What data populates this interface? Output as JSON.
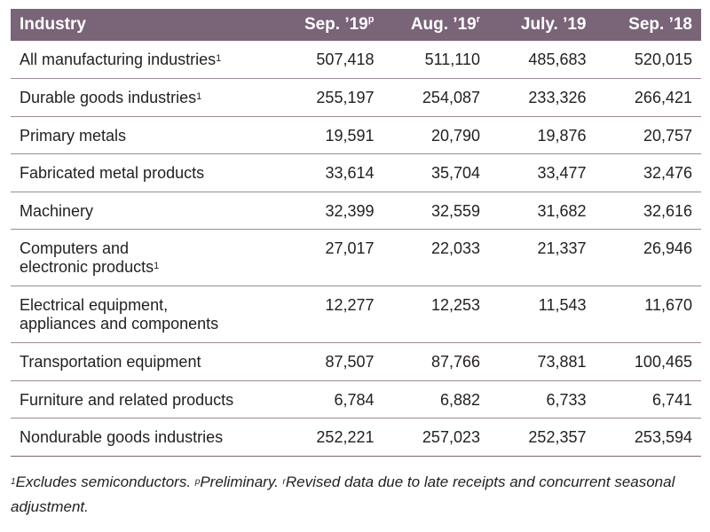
{
  "chart_data": {
    "type": "table",
    "columns": [
      {
        "label": "Industry",
        "mark": ""
      },
      {
        "label": "Sep. ’19",
        "mark": "p"
      },
      {
        "label": "Aug. ’19",
        "mark": "r"
      },
      {
        "label": "July. ’19",
        "mark": ""
      },
      {
        "label": "Sep. ’18",
        "mark": ""
      }
    ],
    "rows": [
      {
        "lines": [
          "All manufacturing industries"
        ],
        "mark": "1",
        "values": [
          "507,418",
          "511,110",
          "485,683",
          "520,015"
        ]
      },
      {
        "lines": [
          "Durable goods industries"
        ],
        "mark": "1",
        "values": [
          "255,197",
          "254,087",
          "233,326",
          "266,421"
        ]
      },
      {
        "lines": [
          "Primary metals"
        ],
        "mark": "",
        "values": [
          "19,591",
          "20,790",
          "19,876",
          "20,757"
        ]
      },
      {
        "lines": [
          "Fabricated metal products"
        ],
        "mark": "",
        "values": [
          "33,614",
          "35,704",
          "33,477",
          "32,476"
        ]
      },
      {
        "lines": [
          "Machinery"
        ],
        "mark": "",
        "values": [
          "32,399",
          "32,559",
          "31,682",
          "32,616"
        ]
      },
      {
        "lines": [
          "Computers and",
          "electronic products"
        ],
        "mark": "1",
        "values": [
          "27,017",
          "22,033",
          "21,337",
          "26,946"
        ]
      },
      {
        "lines": [
          "Electrical equipment,",
          "appliances and components"
        ],
        "mark": "",
        "values": [
          "12,277",
          "12,253",
          "11,543",
          "11,670"
        ]
      },
      {
        "lines": [
          "Transportation equipment"
        ],
        "mark": "",
        "values": [
          "87,507",
          "87,766",
          "73,881",
          "100,465"
        ]
      },
      {
        "lines": [
          "Furniture and related products"
        ],
        "mark": "",
        "values": [
          "6,784",
          "6,882",
          "6,733",
          "6,741"
        ]
      },
      {
        "lines": [
          "Nondurable goods industries"
        ],
        "mark": "",
        "values": [
          "252,221",
          "257,023",
          "252,357",
          "253,594"
        ]
      }
    ],
    "footnotes": [
      {
        "mark": "1",
        "text": "Excludes semiconductors. "
      },
      {
        "mark": "p",
        "text": "Preliminary. "
      },
      {
        "mark": "r",
        "text": "Revised data due to late receipts and concurrent seasonal adjustment."
      }
    ]
  },
  "colors": {
    "header_bg": "#7a6478",
    "header_text": "#ffffff",
    "rule": "#9b8b99"
  }
}
